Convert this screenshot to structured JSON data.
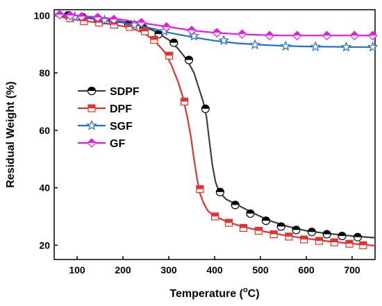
{
  "chart_data": {
    "type": "line",
    "xlabel_main": "Temperature (",
    "xlabel_sup": "o",
    "xlabel_tail": "C)",
    "ylabel": "Residual Weight (%)",
    "xlim": [
      50,
      750
    ],
    "ylim": [
      15,
      102
    ],
    "xticks": [
      100,
      200,
      300,
      400,
      500,
      600,
      700
    ],
    "yticks": [
      20,
      40,
      60,
      80,
      100
    ],
    "legend_position": "center-left",
    "series": [
      {
        "name": "SDPF",
        "color": "#3f3f3f",
        "marker": "half-circle",
        "line": [
          [
            50,
            100
          ],
          [
            100,
            99.5
          ],
          [
            150,
            98.8
          ],
          [
            200,
            97.8
          ],
          [
            240,
            96.5
          ],
          [
            270,
            94.5
          ],
          [
            300,
            91.5
          ],
          [
            320,
            88.5
          ],
          [
            340,
            84.5
          ],
          [
            355,
            80
          ],
          [
            365,
            75
          ],
          [
            375,
            70
          ],
          [
            382,
            65
          ],
          [
            388,
            57
          ],
          [
            395,
            48
          ],
          [
            402,
            42
          ],
          [
            410,
            38.5
          ],
          [
            425,
            36
          ],
          [
            450,
            34
          ],
          [
            480,
            31.5
          ],
          [
            520,
            28.5
          ],
          [
            560,
            26.5
          ],
          [
            600,
            25
          ],
          [
            650,
            24
          ],
          [
            700,
            23.2
          ],
          [
            750,
            22.6
          ]
        ],
        "markers": [
          [
            80,
            100
          ],
          [
            112,
            99.4
          ],
          [
            145,
            98.8
          ],
          [
            178,
            97.8
          ],
          [
            212,
            96.8
          ],
          [
            245,
            95.5
          ],
          [
            278,
            93.5
          ],
          [
            311,
            90.5
          ],
          [
            344,
            84.5
          ],
          [
            380,
            67.5
          ],
          [
            412,
            38.5
          ],
          [
            445,
            34
          ],
          [
            478,
            31
          ],
          [
            512,
            28.5
          ],
          [
            545,
            26.5
          ],
          [
            578,
            25.3
          ],
          [
            612,
            24.6
          ],
          [
            645,
            23.8
          ],
          [
            678,
            23.2
          ],
          [
            712,
            22.8
          ]
        ]
      },
      {
        "name": "DPF",
        "color": "#e8302a",
        "marker": "half-square",
        "line": [
          [
            50,
            100
          ],
          [
            80,
            99
          ],
          [
            120,
            98
          ],
          [
            170,
            97
          ],
          [
            210,
            96
          ],
          [
            245,
            94
          ],
          [
            270,
            91
          ],
          [
            290,
            87.5
          ],
          [
            305,
            83
          ],
          [
            320,
            77
          ],
          [
            330,
            72
          ],
          [
            340,
            65
          ],
          [
            348,
            58
          ],
          [
            355,
            50
          ],
          [
            362,
            43
          ],
          [
            368,
            38
          ],
          [
            375,
            35
          ],
          [
            385,
            32
          ],
          [
            400,
            30
          ],
          [
            430,
            28
          ],
          [
            460,
            26.5
          ],
          [
            500,
            25
          ],
          [
            550,
            23.5
          ],
          [
            600,
            22.3
          ],
          [
            650,
            21.3
          ],
          [
            700,
            20.5
          ],
          [
            750,
            19.8
          ]
        ],
        "markers": [
          [
            85,
            99
          ],
          [
            115,
            98
          ],
          [
            148,
            97.5
          ],
          [
            181,
            96.8
          ],
          [
            215,
            96
          ],
          [
            248,
            94.5
          ],
          [
            268,
            91.5
          ],
          [
            301,
            86
          ],
          [
            334,
            70
          ],
          [
            368,
            39.5
          ],
          [
            401,
            30
          ],
          [
            431,
            27.8
          ],
          [
            463,
            26
          ],
          [
            496,
            25
          ],
          [
            529,
            23.8
          ],
          [
            562,
            23
          ],
          [
            595,
            22
          ],
          [
            628,
            21.5
          ],
          [
            661,
            21
          ],
          [
            694,
            20.5
          ],
          [
            724,
            20
          ]
        ]
      },
      {
        "name": "SGF",
        "color": "#1f6fc9",
        "marker": "star",
        "line": [
          [
            50,
            100
          ],
          [
            100,
            99.5
          ],
          [
            150,
            98.5
          ],
          [
            200,
            97.5
          ],
          [
            250,
            96
          ],
          [
            300,
            94
          ],
          [
            350,
            92.5
          ],
          [
            400,
            91.2
          ],
          [
            450,
            90.3
          ],
          [
            500,
            89.8
          ],
          [
            550,
            89.4
          ],
          [
            600,
            89.2
          ],
          [
            650,
            89.1
          ],
          [
            700,
            89
          ],
          [
            750,
            89
          ]
        ],
        "markers": [
          [
            95,
            99.5
          ],
          [
            160,
            98.3
          ],
          [
            225,
            96.7
          ],
          [
            290,
            94.5
          ],
          [
            355,
            92.8
          ],
          [
            420,
            91.3
          ],
          [
            488,
            89.8
          ],
          [
            555,
            89.3
          ],
          [
            620,
            89.1
          ],
          [
            687,
            89
          ],
          [
            745,
            89
          ]
        ]
      },
      {
        "name": "GF",
        "color": "#e619e6",
        "marker": "diamond",
        "line": [
          [
            50,
            100.5
          ],
          [
            100,
            100
          ],
          [
            150,
            99.3
          ],
          [
            200,
            98.5
          ],
          [
            250,
            97.2
          ],
          [
            300,
            96
          ],
          [
            350,
            94.8
          ],
          [
            400,
            94
          ],
          [
            450,
            93.5
          ],
          [
            500,
            93.2
          ],
          [
            550,
            93
          ],
          [
            600,
            93
          ],
          [
            650,
            93
          ],
          [
            700,
            93
          ],
          [
            750,
            93
          ]
        ],
        "markers": [
          [
            62,
            100.3
          ],
          [
            85,
            100
          ],
          [
            110,
            99.6
          ],
          [
            145,
            99.3
          ],
          [
            180,
            98.6
          ],
          [
            240,
            97.5
          ],
          [
            295,
            96
          ],
          [
            350,
            94.8
          ],
          [
            405,
            94
          ],
          [
            460,
            93.5
          ],
          [
            520,
            93
          ],
          [
            580,
            93
          ],
          [
            645,
            93
          ],
          [
            705,
            93
          ],
          [
            745,
            93
          ]
        ]
      }
    ]
  }
}
